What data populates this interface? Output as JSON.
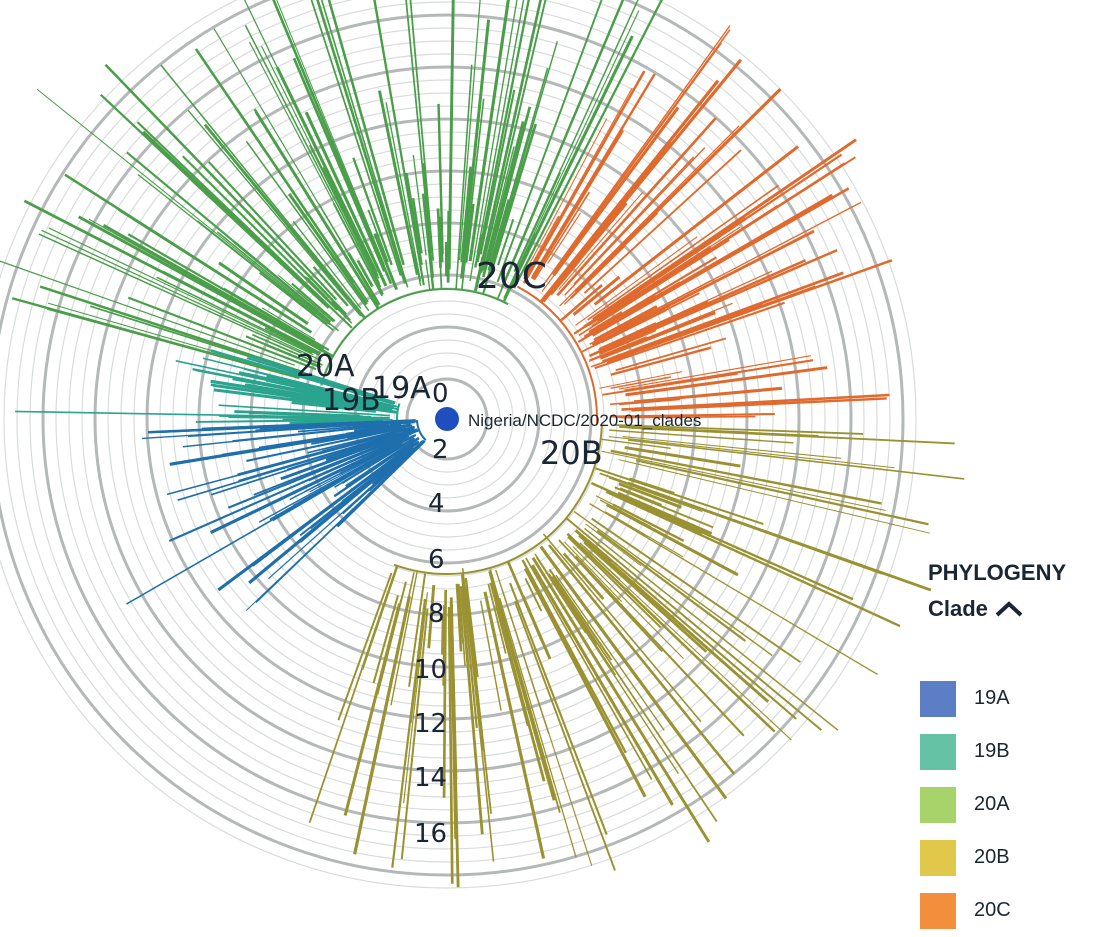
{
  "root_label": "Nigeria/NCDC/2020-01_clades",
  "clade_labels": [
    {
      "clade": "19A",
      "text": "19A"
    },
    {
      "clade": "19B",
      "text": "19B"
    },
    {
      "clade": "20A",
      "text": "20A"
    },
    {
      "clade": "20B",
      "text": "20B"
    },
    {
      "clade": "20C",
      "text": "20C"
    }
  ],
  "rings": [
    "0",
    "2",
    "4",
    "6",
    "8",
    "10",
    "12",
    "14",
    "16"
  ],
  "legend": {
    "title": "PHYLOGENY",
    "subtitle": "Clade",
    "items": [
      {
        "label": "19A",
        "color": "#5b7ec5"
      },
      {
        "label": "19B",
        "color": "#66c2a5"
      },
      {
        "label": "20A",
        "color": "#a6d36a"
      },
      {
        "label": "20B",
        "color": "#e2c84a"
      },
      {
        "label": "20C",
        "color": "#f28e3c"
      }
    ]
  },
  "branch_colors": {
    "19A": "#1f6fad",
    "19B": "#2aa38f",
    "20A": "#4a9e4a",
    "20B": "#9a9232",
    "20C": "#e06a2e"
  },
  "root_color": "#1f4fbf"
}
